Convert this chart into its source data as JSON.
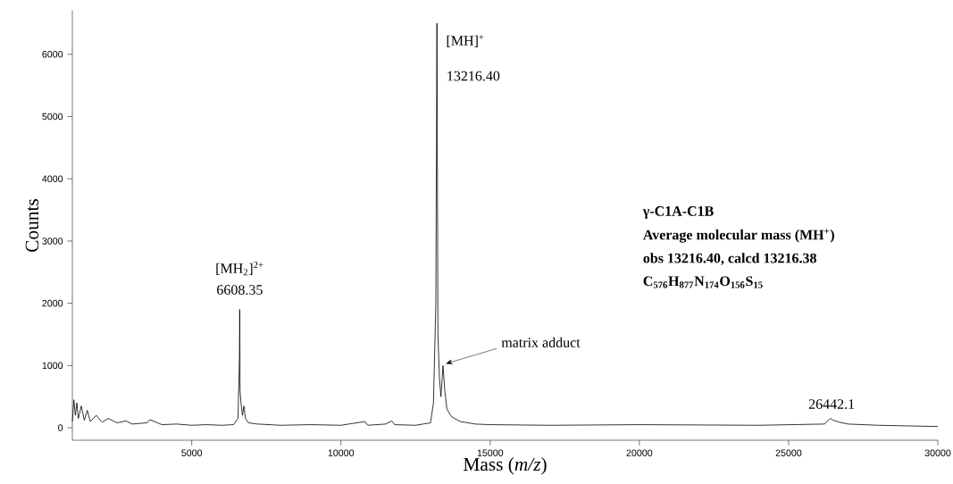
{
  "chart_data": {
    "type": "line",
    "xlabel": "Mass (*m/z*)",
    "ylabel": "Counts",
    "xlim": [
      1000,
      30000
    ],
    "ylim": [
      -200,
      6700
    ],
    "xticks": [
      5000,
      10000,
      15000,
      20000,
      25000,
      30000
    ],
    "yticks": [
      0,
      1000,
      2000,
      3000,
      4000,
      5000,
      6000
    ],
    "series": [
      {
        "color": "#000000",
        "x": [
          1000,
          1050,
          1100,
          1150,
          1200,
          1300,
          1400,
          1500,
          1600,
          1800,
          2000,
          2200,
          2500,
          2800,
          3000,
          3500,
          3600,
          4000,
          4500,
          5000,
          5500,
          6000,
          6400,
          6550,
          6600,
          6608,
          6620,
          6650,
          6700,
          6750,
          6800,
          6900,
          7200,
          8000,
          9000,
          10000,
          10800,
          10900,
          11500,
          11700,
          11800,
          12500,
          13000,
          13100,
          13180,
          13216,
          13250,
          13300,
          13350,
          13420,
          13480,
          13550,
          13700,
          14000,
          14500,
          15000,
          17000,
          20000,
          24000,
          26200,
          26400,
          26500,
          26700,
          27000,
          28000,
          30000
        ],
        "values": [
          100,
          450,
          200,
          400,
          150,
          350,
          120,
          280,
          100,
          200,
          90,
          150,
          80,
          110,
          60,
          80,
          130,
          50,
          60,
          40,
          50,
          40,
          50,
          150,
          1150,
          1900,
          600,
          400,
          200,
          350,
          150,
          80,
          60,
          40,
          50,
          40,
          100,
          40,
          60,
          110,
          50,
          40,
          80,
          400,
          2000,
          6500,
          1500,
          800,
          500,
          1000,
          600,
          300,
          180,
          100,
          60,
          50,
          40,
          50,
          40,
          60,
          150,
          120,
          90,
          60,
          40,
          20
        ]
      }
    ],
    "annotations": [
      {
        "text": "[MH]$^{+}$",
        "x": 13216.4,
        "y": 6500
      },
      "13216.40",
      {
        "text": "[MH$_{2}$]$^{2+}$",
        "x": 6608.35,
        "y": 1900
      },
      {
        "text": "6608.35",
        "x": 6608.35,
        "y": 1900
      },
      {
        "text": "matrix adduct",
        "x": 13420,
        "y": 1000
      },
      {
        "text": "26442.1",
        "x": 26442.1,
        "y": 150
      },
      "γ-C1A-C1B",
      "Average molecular mass (MH$^{+}$)",
      "obs 13216.40, calcd 13216.38",
      "C$_{576}$H$_{877}$N$_{174}$O$_{156}$S$_{15}$"
    ]
  }
}
